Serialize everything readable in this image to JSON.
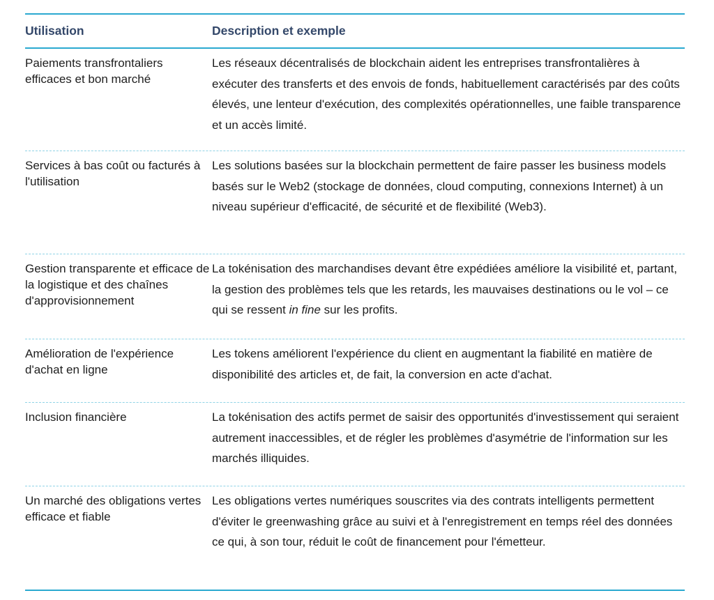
{
  "header": {
    "col1": "Utilisation",
    "col2": "Description et exemple"
  },
  "rows": [
    {
      "use": "Paiements transfrontaliers efficaces et bon marché",
      "desc": "Les réseaux décentralisés de blockchain aident les entreprises transfrontalières à exécuter des transferts et des envois de fonds, habituellement caractérisés par des coûts élevés, une lenteur d'exécution, des complexités opérationnelles, une faible transparence et un accès limité."
    },
    {
      "use": "Services à bas coût ou facturés à l'utilisation",
      "desc": "Les solutions basées sur la blockchain permettent de faire passer les business models basés sur le Web2 (stockage de données, cloud computing, connexions Internet) à un niveau supérieur d'efficacité, de sécurité et de flexibilité (Web3)."
    },
    {
      "use": "Gestion transparente et efficace de la logistique et des chaînes d'approvisionnement",
      "desc_a": "La tokénisation des marchandises devant être expédiées améliore la visibilité et, partant, la gestion des problèmes tels que les retards, les mauvaises destinations ou le vol – ce qui se ressent ",
      "desc_em": "in fine",
      "desc_b": " sur les profits."
    },
    {
      "use": "Amélioration de l'expérience d'achat en ligne",
      "desc": "Les tokens améliorent l'expérience du client en augmentant la fiabilité en matière de disponibilité des articles et, de fait, la conversion en acte d'achat."
    },
    {
      "use": "Inclusion financière",
      "desc": "La tokénisation des actifs permet de saisir des opportunités d'investissement qui seraient autrement inaccessibles, et de régler les problèmes d'asymétrie de l'information sur les marchés illiquides."
    },
    {
      "use": "Un marché des obligations vertes efficace et fiable",
      "desc": "Les obligations vertes numériques souscrites via des contrats intelligents permettent d'éviter le greenwashing grâce au suivi et à l'enregistrement en temps réel des données ce qui, à son tour, réduit le coût de financement pour l'émetteur."
    }
  ]
}
